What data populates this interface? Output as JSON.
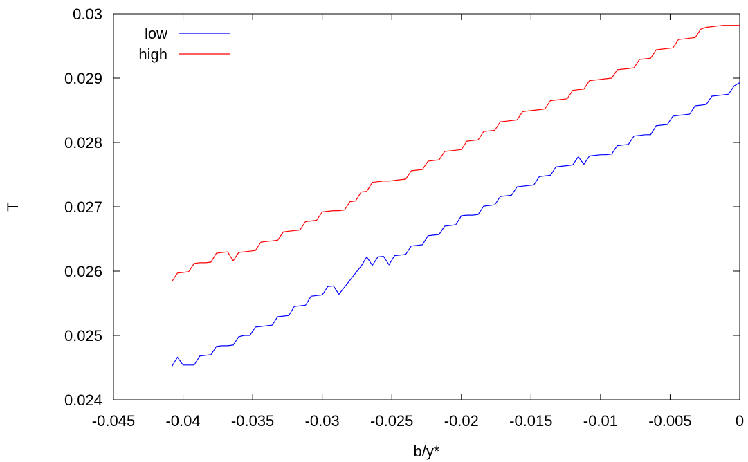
{
  "chart_data": {
    "type": "line",
    "xlabel": "b/y*",
    "ylabel": "T",
    "xlim": [
      -0.045,
      0
    ],
    "ylim": [
      0.024,
      0.03
    ],
    "xticks": [
      -0.045,
      -0.04,
      -0.035,
      -0.03,
      -0.025,
      -0.02,
      -0.015,
      -0.01,
      -0.005,
      0
    ],
    "xtick_labels": [
      "-0.045",
      "-0.04",
      "-0.035",
      "-0.03",
      "-0.025",
      "-0.02",
      "-0.015",
      "-0.01",
      "-0.005",
      "0"
    ],
    "yticks": [
      0.024,
      0.025,
      0.026,
      0.027,
      0.028,
      0.029,
      0.03
    ],
    "ytick_labels": [
      "0.024",
      "0.025",
      "0.026",
      "0.027",
      "0.028",
      "0.029",
      "0.03"
    ],
    "grid": false,
    "legend_position": "top-left",
    "series": [
      {
        "name": "low",
        "color": "#0000ff",
        "x": [
          -0.0408,
          -0.0404,
          -0.04,
          -0.0396,
          -0.0392,
          -0.0388,
          -0.0384,
          -0.038,
          -0.0376,
          -0.0372,
          -0.0368,
          -0.0364,
          -0.036,
          -0.0356,
          -0.0352,
          -0.0348,
          -0.0344,
          -0.034,
          -0.0336,
          -0.0332,
          -0.0328,
          -0.0324,
          -0.032,
          -0.0316,
          -0.0312,
          -0.0308,
          -0.0304,
          -0.03,
          -0.0296,
          -0.0292,
          -0.0288,
          -0.0284,
          -0.028,
          -0.0276,
          -0.0272,
          -0.0268,
          -0.0264,
          -0.026,
          -0.0256,
          -0.0252,
          -0.0248,
          -0.0244,
          -0.024,
          -0.0236,
          -0.0232,
          -0.0228,
          -0.0224,
          -0.022,
          -0.0216,
          -0.0212,
          -0.0208,
          -0.0204,
          -0.02,
          -0.0196,
          -0.0192,
          -0.0188,
          -0.0184,
          -0.018,
          -0.0176,
          -0.0172,
          -0.0168,
          -0.0164,
          -0.016,
          -0.0156,
          -0.0152,
          -0.0148,
          -0.0144,
          -0.014,
          -0.0136,
          -0.0132,
          -0.0128,
          -0.0124,
          -0.012,
          -0.0116,
          -0.0112,
          -0.0108,
          -0.0104,
          -0.01,
          -0.0096,
          -0.0092,
          -0.0088,
          -0.0084,
          -0.008,
          -0.0076,
          -0.0072,
          -0.0068,
          -0.0064,
          -0.006,
          -0.0056,
          -0.0052,
          -0.0048,
          -0.0044,
          -0.004,
          -0.0036,
          -0.0032,
          -0.0028,
          -0.0024,
          -0.002,
          -0.0016,
          -0.0012,
          -0.0008,
          -0.0004,
          0.0
        ],
        "y": [
          0.02452,
          0.02466,
          0.02454,
          0.02454,
          0.02454,
          0.02468,
          0.02469,
          0.0247,
          0.02483,
          0.02484,
          0.02484,
          0.02485,
          0.02498,
          0.025,
          0.025,
          0.02513,
          0.02514,
          0.02515,
          0.02516,
          0.02529,
          0.0253,
          0.02531,
          0.02545,
          0.02546,
          0.02547,
          0.02561,
          0.02562,
          0.02563,
          0.02576,
          0.02577,
          0.02564,
          0.02575,
          0.02586,
          0.02597,
          0.02608,
          0.02622,
          0.02609,
          0.02622,
          0.02623,
          0.0261,
          0.02624,
          0.02625,
          0.02626,
          0.02639,
          0.0264,
          0.02641,
          0.02655,
          0.02656,
          0.02657,
          0.0267,
          0.02671,
          0.02672,
          0.02686,
          0.02687,
          0.02687,
          0.02688,
          0.02701,
          0.02702,
          0.02703,
          0.02716,
          0.02717,
          0.02718,
          0.02731,
          0.02732,
          0.02733,
          0.02734,
          0.02747,
          0.02748,
          0.02749,
          0.02762,
          0.02763,
          0.02764,
          0.02765,
          0.02778,
          0.02766,
          0.02779,
          0.0278,
          0.02781,
          0.02781,
          0.02782,
          0.02795,
          0.02796,
          0.02797,
          0.0281,
          0.02811,
          0.02812,
          0.02812,
          0.02826,
          0.02827,
          0.02828,
          0.02841,
          0.02842,
          0.02843,
          0.02844,
          0.02857,
          0.02858,
          0.02859,
          0.02872,
          0.02873,
          0.02874,
          0.02875,
          0.02888,
          0.02893
        ]
      },
      {
        "name": "high",
        "color": "#ff0000",
        "x": [
          -0.0408,
          -0.0404,
          -0.04,
          -0.0396,
          -0.0392,
          -0.0388,
          -0.0384,
          -0.038,
          -0.0376,
          -0.0372,
          -0.0368,
          -0.0364,
          -0.036,
          -0.0356,
          -0.0352,
          -0.0348,
          -0.0344,
          -0.034,
          -0.0336,
          -0.0332,
          -0.0328,
          -0.0324,
          -0.032,
          -0.0316,
          -0.0312,
          -0.0308,
          -0.0304,
          -0.03,
          -0.0296,
          -0.0292,
          -0.0288,
          -0.0284,
          -0.028,
          -0.0276,
          -0.0272,
          -0.0268,
          -0.0264,
          -0.026,
          -0.0256,
          -0.0252,
          -0.0248,
          -0.0244,
          -0.024,
          -0.0236,
          -0.0232,
          -0.0228,
          -0.0224,
          -0.022,
          -0.0216,
          -0.0212,
          -0.0208,
          -0.0204,
          -0.02,
          -0.0196,
          -0.0192,
          -0.0188,
          -0.0184,
          -0.018,
          -0.0176,
          -0.0172,
          -0.0168,
          -0.0164,
          -0.016,
          -0.0156,
          -0.0152,
          -0.0148,
          -0.0144,
          -0.014,
          -0.0136,
          -0.0132,
          -0.0128,
          -0.0124,
          -0.012,
          -0.0116,
          -0.0112,
          -0.0108,
          -0.0104,
          -0.01,
          -0.0096,
          -0.0092,
          -0.0088,
          -0.0084,
          -0.008,
          -0.0076,
          -0.0072,
          -0.0068,
          -0.0064,
          -0.006,
          -0.0056,
          -0.0052,
          -0.0048,
          -0.0044,
          -0.004,
          -0.0036,
          -0.0032,
          -0.0028,
          -0.0024,
          -0.002,
          -0.0016,
          -0.0012,
          -0.0008,
          -0.0004,
          0.0
        ],
        "y": [
          0.02584,
          0.02597,
          0.02598,
          0.02599,
          0.02612,
          0.02613,
          0.02613,
          0.02614,
          0.02628,
          0.02629,
          0.0263,
          0.02616,
          0.02629,
          0.0263,
          0.02631,
          0.02632,
          0.02645,
          0.02646,
          0.02647,
          0.02648,
          0.02661,
          0.02662,
          0.02663,
          0.02664,
          0.02677,
          0.02678,
          0.02679,
          0.02692,
          0.02693,
          0.02694,
          0.02694,
          0.02695,
          0.02708,
          0.02709,
          0.02723,
          0.02724,
          0.02738,
          0.02739,
          0.0274,
          0.0274,
          0.02741,
          0.02742,
          0.02743,
          0.02756,
          0.02757,
          0.02758,
          0.02771,
          0.02772,
          0.02773,
          0.02786,
          0.02787,
          0.02788,
          0.02789,
          0.02802,
          0.02803,
          0.02804,
          0.02817,
          0.02818,
          0.02819,
          0.02832,
          0.02833,
          0.02834,
          0.02835,
          0.02848,
          0.02849,
          0.0285,
          0.02851,
          0.02852,
          0.02865,
          0.02866,
          0.02867,
          0.02868,
          0.02881,
          0.02882,
          0.02883,
          0.02896,
          0.02897,
          0.02898,
          0.02899,
          0.029,
          0.02913,
          0.02914,
          0.02915,
          0.02916,
          0.02929,
          0.0293,
          0.02931,
          0.02944,
          0.02945,
          0.02946,
          0.02947,
          0.0296,
          0.02961,
          0.02962,
          0.02963,
          0.02976,
          0.02979,
          0.0298,
          0.02981,
          0.02982,
          0.02982,
          0.02982,
          0.02982
        ]
      }
    ]
  }
}
